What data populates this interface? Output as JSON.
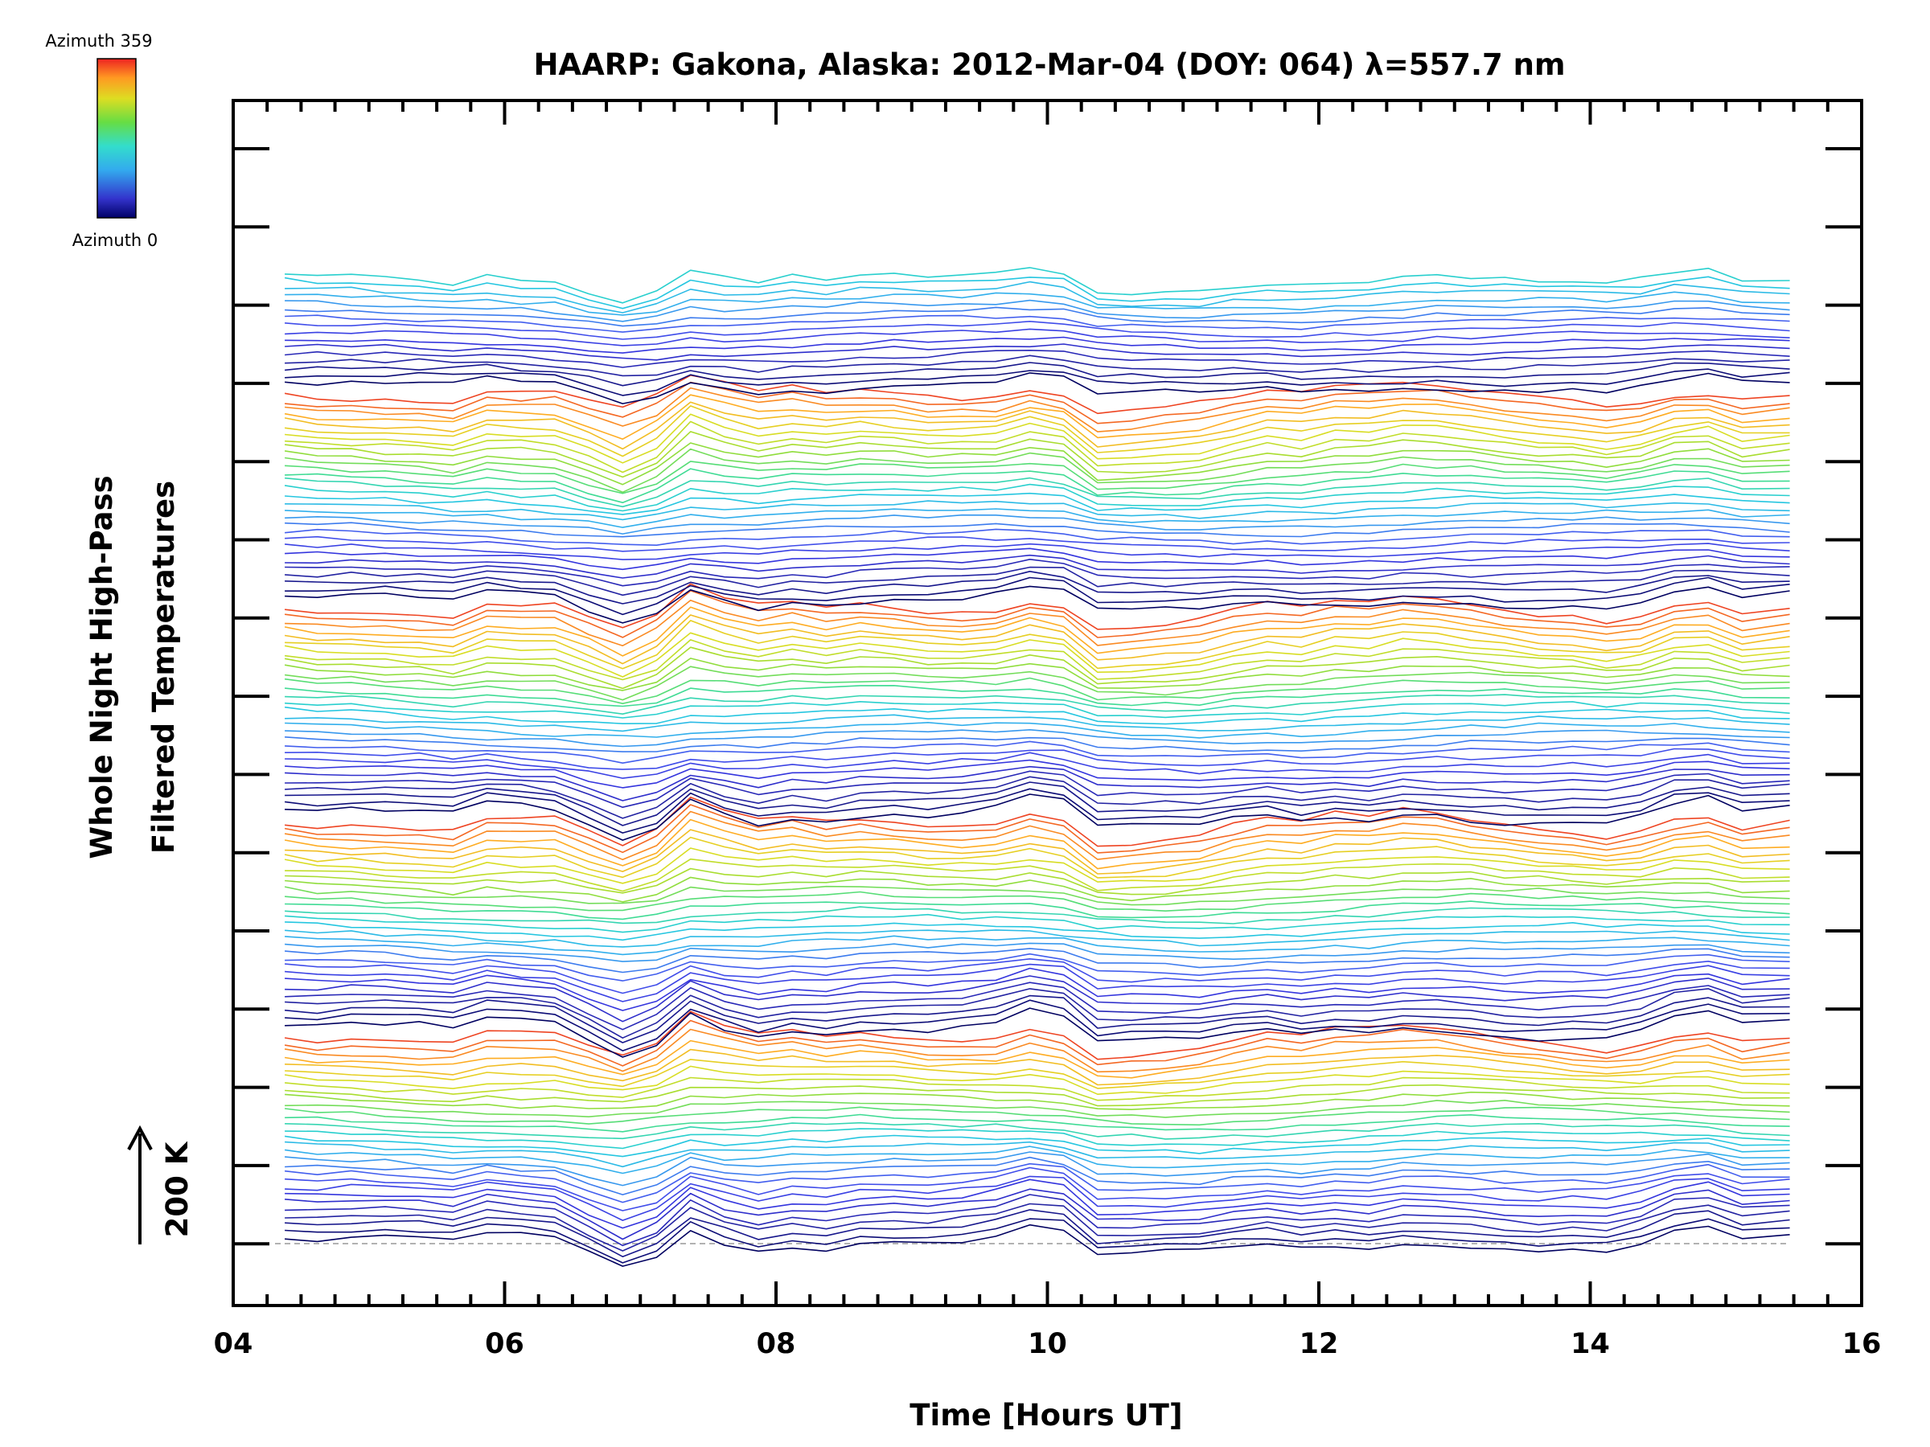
{
  "chart_data": {
    "type": "line",
    "title": "HAARP: Gakona,  Alaska: 2012-Mar-04 (DOY: 064) λ=557.7 nm",
    "xlabel": "Time [Hours UT]",
    "ylabel_line1": "Whole Night High-Pass",
    "ylabel_line2": "Filtered Temperatures",
    "scale_label": "200 K",
    "scale_value_K": 200,
    "xlim": [
      4,
      16
    ],
    "x_ticks": [
      "04",
      "06",
      "08",
      "10",
      "12",
      "14",
      "16"
    ],
    "colorbar": {
      "top_label": "Azimuth 359",
      "bottom_label": "Azimuth 0"
    },
    "x_common": [
      4.38,
      4.62,
      4.87,
      5.12,
      5.37,
      5.62,
      5.87,
      6.12,
      6.37,
      6.62,
      6.87,
      7.12,
      7.37,
      7.62,
      7.87,
      8.12,
      8.37,
      8.62,
      8.87,
      9.12,
      9.37,
      9.62,
      9.87,
      10.12,
      10.37,
      10.62,
      10.87,
      11.12,
      11.37,
      11.62,
      11.87,
      12.12,
      12.37,
      12.62,
      12.87,
      13.12,
      13.37,
      13.62,
      13.87,
      14.12,
      14.37,
      14.62,
      14.87,
      15.12,
      15.47
    ],
    "base_profile_K": [
      5,
      0,
      5,
      5,
      5,
      0,
      25,
      20,
      15,
      -20,
      -55,
      -25,
      40,
      10,
      -10,
      0,
      -10,
      0,
      0,
      -5,
      0,
      10,
      35,
      25,
      -35,
      -30,
      -25,
      -20,
      -5,
      5,
      -5,
      5,
      0,
      10,
      5,
      -5,
      -15,
      -20,
      -20,
      -25,
      -10,
      20,
      30,
      5,
      15
    ],
    "num_traces": 136,
    "trace_step_K": 32,
    "trace_color_ramp": [
      "#000060",
      "#2222a0",
      "#3333dd",
      "#4455ee",
      "#33aaee",
      "#22ccdd",
      "#44dd88",
      "#99dd33",
      "#dddd22",
      "#ffaa22",
      "#ee4422"
    ],
    "series_note": ""
  }
}
